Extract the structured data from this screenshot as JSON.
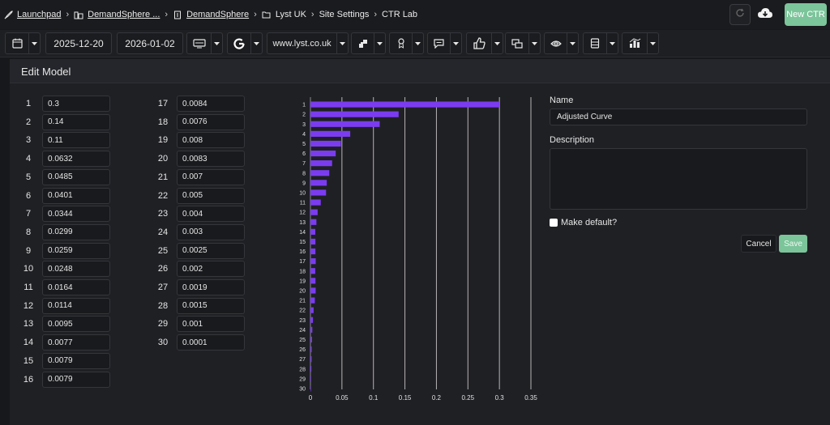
{
  "breadcrumbs": [
    {
      "label": "Launchpad",
      "icon": "rocket-icon",
      "underline": true
    },
    {
      "label": "DemandSphere ...",
      "icon": "buildings-icon",
      "underline": true
    },
    {
      "label": "DemandSphere",
      "icon": "building-icon",
      "underline": true
    },
    {
      "label": "Lyst UK",
      "icon": "folder-icon",
      "underline": false
    },
    {
      "label": "Site Settings",
      "icon": "",
      "underline": false
    },
    {
      "label": "CTR Lab",
      "icon": "",
      "underline": false
    }
  ],
  "header": {
    "refresh_icon": "refresh-icon",
    "cloud_icon": "cloud-download-icon",
    "new_ctr_label": "New CTR"
  },
  "toolbar": {
    "calendar_icon": "calendar-icon",
    "start_date": "2025-12-20",
    "end_date": "2026-01-02",
    "device_icon": "desktop-icon",
    "engine_icon": "google-icon",
    "domain": "www.lyst.co.uk",
    "filter_icons": [
      "segments-icon",
      "ribbon-icon",
      "comment-icon",
      "thumbs-up-icon",
      "copy-icon",
      "eye-icon",
      "layout-icon",
      "bar-chart-icon"
    ]
  },
  "panel": {
    "title": "Edit Model"
  },
  "positions": {
    "left": [
      {
        "n": "1",
        "v": "0.3"
      },
      {
        "n": "2",
        "v": "0.14"
      },
      {
        "n": "3",
        "v": "0.11"
      },
      {
        "n": "4",
        "v": "0.0632"
      },
      {
        "n": "5",
        "v": "0.0485"
      },
      {
        "n": "6",
        "v": "0.0401"
      },
      {
        "n": "7",
        "v": "0.0344"
      },
      {
        "n": "8",
        "v": "0.0299"
      },
      {
        "n": "9",
        "v": "0.0259"
      },
      {
        "n": "10",
        "v": "0.0248"
      },
      {
        "n": "11",
        "v": "0.0164"
      },
      {
        "n": "12",
        "v": "0.0114"
      },
      {
        "n": "13",
        "v": "0.0095"
      },
      {
        "n": "14",
        "v": "0.0077"
      },
      {
        "n": "15",
        "v": "0.0079"
      },
      {
        "n": "16",
        "v": "0.0079"
      }
    ],
    "right": [
      {
        "n": "17",
        "v": "0.0084"
      },
      {
        "n": "18",
        "v": "0.0076"
      },
      {
        "n": "19",
        "v": "0.008"
      },
      {
        "n": "20",
        "v": "0.0083"
      },
      {
        "n": "21",
        "v": "0.007"
      },
      {
        "n": "22",
        "v": "0.005"
      },
      {
        "n": "23",
        "v": "0.004"
      },
      {
        "n": "24",
        "v": "0.003"
      },
      {
        "n": "25",
        "v": "0.0025"
      },
      {
        "n": "26",
        "v": "0.002"
      },
      {
        "n": "27",
        "v": "0.0019"
      },
      {
        "n": "28",
        "v": "0.0015"
      },
      {
        "n": "29",
        "v": "0.001"
      },
      {
        "n": "30",
        "v": "0.0001"
      }
    ]
  },
  "chart_data": {
    "type": "bar",
    "orientation": "horizontal",
    "categories": [
      "1",
      "2",
      "3",
      "4",
      "5",
      "6",
      "7",
      "8",
      "9",
      "10",
      "11",
      "12",
      "13",
      "14",
      "15",
      "16",
      "17",
      "18",
      "19",
      "20",
      "21",
      "22",
      "23",
      "24",
      "25",
      "26",
      "27",
      "28",
      "29",
      "30"
    ],
    "values": [
      0.3,
      0.14,
      0.11,
      0.0632,
      0.0485,
      0.0401,
      0.0344,
      0.0299,
      0.0259,
      0.0248,
      0.0164,
      0.0114,
      0.0095,
      0.0077,
      0.0079,
      0.0079,
      0.0084,
      0.0076,
      0.008,
      0.0083,
      0.007,
      0.005,
      0.004,
      0.003,
      0.0025,
      0.002,
      0.0019,
      0.0015,
      0.001,
      0.0001
    ],
    "xticks": [
      "0",
      "0.05",
      "0.1",
      "0.15",
      "0.2",
      "0.25",
      "0.3",
      "0.35"
    ],
    "xlim": [
      0,
      0.35
    ],
    "grid": "vertical",
    "bar_color": "#7b3cf0",
    "title": "",
    "xlabel": "",
    "ylabel": ""
  },
  "form": {
    "name_label": "Name",
    "name_value": "Adjusted Curve",
    "description_label": "Description",
    "description_value": "",
    "default_label": "Make default?",
    "cancel_label": "Cancel",
    "save_label": "Save"
  }
}
